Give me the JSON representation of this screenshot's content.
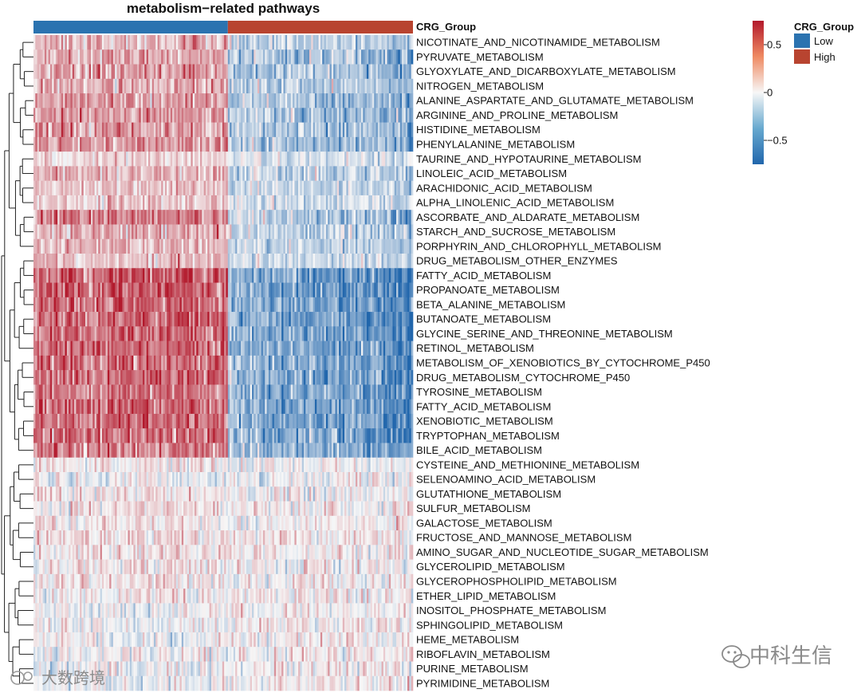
{
  "chart_data": {
    "type": "heatmap",
    "title": "metabolism−related pathways",
    "annotation": {
      "name": "CRG_Group",
      "groups": [
        {
          "label": "Low",
          "color": "#2B73B0",
          "samples": 105
        },
        {
          "label": "High",
          "color": "#B84430",
          "samples": 100
        }
      ]
    },
    "color_scale": {
      "min": -0.75,
      "max": 0.75,
      "ticks": [
        0.5,
        0,
        -0.5
      ],
      "tick_labels": [
        "0.5",
        "0",
        "−0.5"
      ],
      "colors": [
        "#2166AC",
        "#F7F7F7",
        "#B2182B"
      ]
    },
    "legend_group_title": "CRG_Group",
    "rows": [
      {
        "label": "NICOTINATE_AND_NICOTINAMIDE_METABOLISM",
        "low_mean": 0.22,
        "high_mean": -0.22
      },
      {
        "label": "PYRUVATE_METABOLISM",
        "low_mean": 0.28,
        "high_mean": -0.28
      },
      {
        "label": "GLYOXYLATE_AND_DICARBOXYLATE_METABOLISM",
        "low_mean": 0.28,
        "high_mean": -0.28
      },
      {
        "label": "NITROGEN_METABOLISM",
        "low_mean": 0.26,
        "high_mean": -0.26
      },
      {
        "label": "ALANINE_ASPARTATE_AND_GLUTAMATE_METABOLISM",
        "low_mean": 0.3,
        "high_mean": -0.3
      },
      {
        "label": "ARGININE_AND_PROLINE_METABOLISM",
        "low_mean": 0.3,
        "high_mean": -0.3
      },
      {
        "label": "HISTIDINE_METABOLISM",
        "low_mean": 0.28,
        "high_mean": -0.28
      },
      {
        "label": "PHENYLALANINE_METABOLISM",
        "low_mean": 0.3,
        "high_mean": -0.3
      },
      {
        "label": "TAURINE_AND_HYPOTAURINE_METABOLISM",
        "low_mean": 0.12,
        "high_mean": -0.1
      },
      {
        "label": "LINOLEIC_ACID_METABOLISM",
        "low_mean": 0.22,
        "high_mean": -0.2
      },
      {
        "label": "ARACHIDONIC_ACID_METABOLISM",
        "low_mean": 0.18,
        "high_mean": -0.18
      },
      {
        "label": "ALPHA_LINOLENIC_ACID_METABOLISM",
        "low_mean": 0.14,
        "high_mean": -0.14
      },
      {
        "label": "ASCORBATE_AND_ALDARATE_METABOLISM",
        "low_mean": 0.4,
        "high_mean": -0.3
      },
      {
        "label": "STARCH_AND_SUCROSE_METABOLISM",
        "low_mean": 0.22,
        "high_mean": -0.2
      },
      {
        "label": "PORPHYRIN_AND_CHLOROPHYLL_METABOLISM",
        "low_mean": 0.2,
        "high_mean": -0.18
      },
      {
        "label": "DRUG_METABOLISM_OTHER_ENZYMES",
        "low_mean": 0.18,
        "high_mean": -0.16
      },
      {
        "label": "FATTY_ACID_METABOLISM",
        "low_mean": 0.5,
        "high_mean": -0.5
      },
      {
        "label": "PROPANOATE_METABOLISM",
        "low_mean": 0.48,
        "high_mean": -0.48
      },
      {
        "label": "BETA_ALANINE_METABOLISM",
        "low_mean": 0.45,
        "high_mean": -0.45
      },
      {
        "label": "BUTANOATE_METABOLISM",
        "low_mean": 0.45,
        "high_mean": -0.45
      },
      {
        "label": "GLYCINE_SERINE_AND_THREONINE_METABOLISM",
        "low_mean": 0.45,
        "high_mean": -0.45
      },
      {
        "label": "RETINOL_METABOLISM",
        "low_mean": 0.45,
        "high_mean": -0.45
      },
      {
        "label": "METABOLISM_OF_XENOBIOTICS_BY_CYTOCHROME_P450",
        "low_mean": 0.45,
        "high_mean": -0.45
      },
      {
        "label": "DRUG_METABOLISM_CYTOCHROME_P450",
        "low_mean": 0.45,
        "high_mean": -0.45
      },
      {
        "label": "TYROSINE_METABOLISM",
        "low_mean": 0.42,
        "high_mean": -0.42
      },
      {
        "label": "FATTY_ACID_METABOLISM",
        "low_mean": 0.45,
        "high_mean": -0.45
      },
      {
        "label": "XENOBIOTIC_METABOLISM",
        "low_mean": 0.45,
        "high_mean": -0.45
      },
      {
        "label": "TRYPTOPHAN_METABOLISM",
        "low_mean": 0.45,
        "high_mean": -0.45
      },
      {
        "label": "BILE_ACID_METABOLISM",
        "low_mean": 0.4,
        "high_mean": -0.4
      },
      {
        "label": "CYSTEINE_AND_METHIONINE_METABOLISM",
        "low_mean": 0.05,
        "high_mean": -0.03
      },
      {
        "label": "SELENOAMINO_ACID_METABOLISM",
        "low_mean": -0.05,
        "high_mean": 0.0
      },
      {
        "label": "GLUTATHIONE_METABOLISM",
        "low_mean": 0.06,
        "high_mean": 0.0
      },
      {
        "label": "SULFUR_METABOLISM",
        "low_mean": 0.08,
        "high_mean": 0.02
      },
      {
        "label": "GALACTOSE_METABOLISM",
        "low_mean": 0.06,
        "high_mean": 0.02
      },
      {
        "label": "FRUCTOSE_AND_MANNOSE_METABOLISM",
        "low_mean": 0.08,
        "high_mean": 0.04
      },
      {
        "label": "AMINO_SUGAR_AND_NUCLEOTIDE_SUGAR_METABOLISM",
        "low_mean": 0.06,
        "high_mean": 0.04
      },
      {
        "label": "GLYCEROLIPID_METABOLISM",
        "low_mean": 0.06,
        "high_mean": 0.02
      },
      {
        "label": "GLYCEROPHOSPHOLIPID_METABOLISM",
        "low_mean": 0.05,
        "high_mean": 0.02
      },
      {
        "label": "ETHER_LIPID_METABOLISM",
        "low_mean": 0.04,
        "high_mean": 0.02
      },
      {
        "label": "INOSITOL_PHOSPHATE_METABOLISM",
        "low_mean": -0.02,
        "high_mean": 0.04
      },
      {
        "label": "SPHINGOLIPID_METABOLISM",
        "low_mean": -0.02,
        "high_mean": 0.03
      },
      {
        "label": "HEME_METABOLISM",
        "low_mean": -0.03,
        "high_mean": 0.03
      },
      {
        "label": "RIBOFLAVIN_METABOLISM",
        "low_mean": 0.0,
        "high_mean": 0.02
      },
      {
        "label": "PURINE_METABOLISM",
        "low_mean": -0.03,
        "high_mean": 0.03
      },
      {
        "label": "PYRIMIDINE_METABOLISM",
        "low_mean": -0.04,
        "high_mean": 0.04
      }
    ]
  },
  "watermarks": {
    "left": "大数跨境",
    "right": "中科生信"
  },
  "icons": [
    "wechat-icon",
    "small-logo-icon"
  ]
}
